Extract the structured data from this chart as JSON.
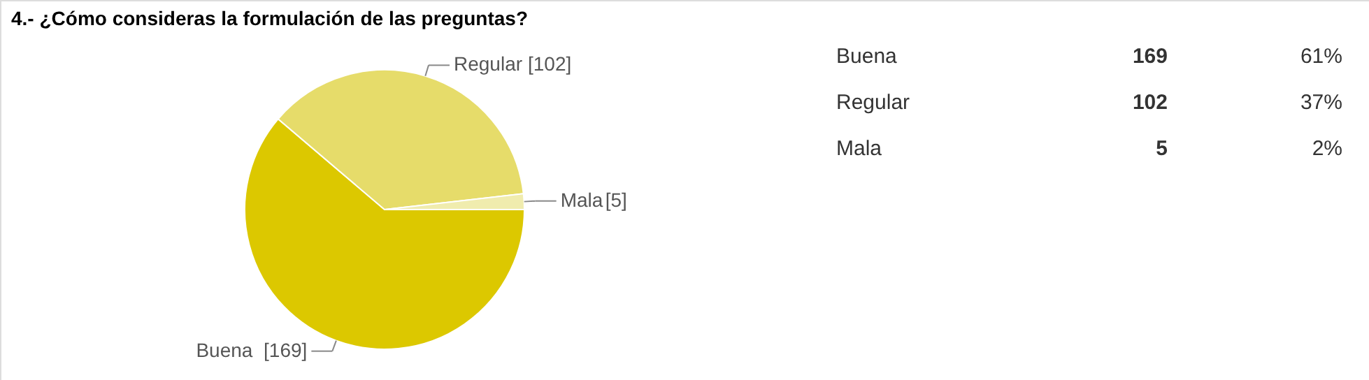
{
  "chart_data": [
    {
      "type": "pie",
      "title": "4.- ¿Cómo consideras la formulación de las preguntas?",
      "categories": [
        "Buena",
        "Regular",
        "Mala"
      ],
      "values": [
        169,
        102,
        5
      ],
      "colors": [
        "#dcc800",
        "#e6dc6a",
        "#f0ecae"
      ],
      "value_labels": [
        "[169]",
        "[102]",
        "[5]"
      ]
    },
    {
      "type": "other",
      "annotations": [
        "Buena",
        "169",
        "61%",
        "Regular",
        "102",
        "37%",
        "Mala",
        "5",
        "2%"
      ]
    }
  ]
}
